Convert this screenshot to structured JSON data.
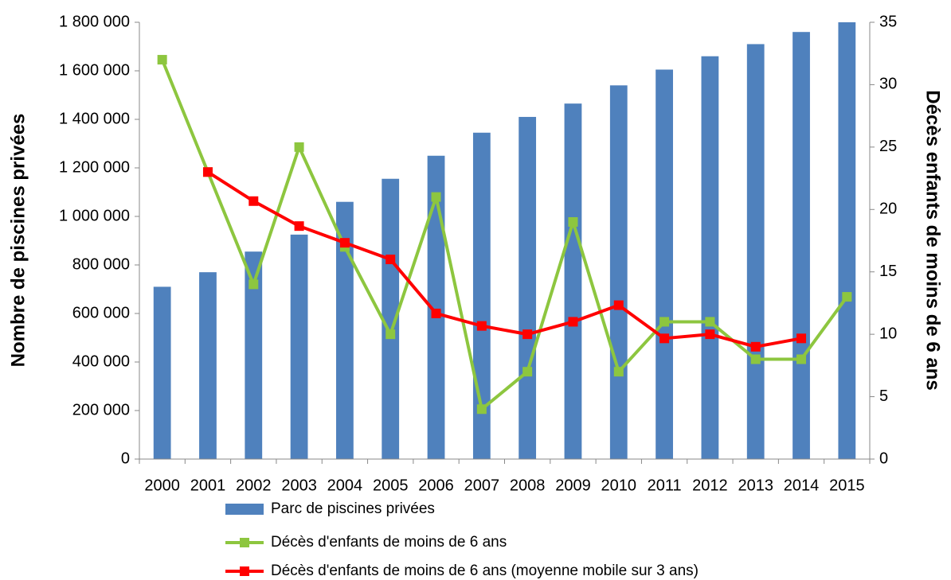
{
  "chart_data": {
    "type": "bar-line",
    "categories": [
      "2000",
      "2001",
      "2002",
      "2003",
      "2004",
      "2005",
      "2006",
      "2007",
      "2008",
      "2009",
      "2010",
      "2011",
      "2012",
      "2013",
      "2014",
      "2015"
    ],
    "series": [
      {
        "name": "Parc de piscines privées",
        "type": "bar",
        "color": "#4f81bd",
        "values": [
          710000,
          770000,
          855000,
          925000,
          1060000,
          1155000,
          1250000,
          1345000,
          1410000,
          1465000,
          1540000,
          1605000,
          1660000,
          1710000,
          1760000,
          1800000
        ]
      },
      {
        "name": "Décès d'enfants de moins de 6 ans",
        "type": "line",
        "axis": "y2",
        "color": "#8dc63f",
        "values": [
          32,
          23,
          14,
          25,
          17,
          10,
          21,
          4,
          7,
          19,
          7,
          11,
          11,
          8,
          8,
          13
        ]
      },
      {
        "name": "Décès d'enfants de moins de 6 ans (moyenne mobile sur 3 ans)",
        "type": "line",
        "axis": "y2",
        "color": "#ff0000",
        "values": [
          null,
          23,
          20.67,
          18.67,
          17.33,
          16,
          11.67,
          10.67,
          10,
          11,
          12.33,
          9.67,
          10,
          9,
          9.67,
          null
        ]
      }
    ],
    "y_label": "Nombre de piscines privées",
    "y2_label": "Décès enfants de moins de 6 ans",
    "ylim": [
      0,
      1800000
    ],
    "yticks": [
      0,
      {
        "value": 200000,
        "label": "200 000"
      },
      {
        "value": 400000,
        "label": "400 000"
      },
      {
        "value": 600000,
        "label": "600 000"
      },
      {
        "value": 800000,
        "label": "800 000"
      },
      {
        "value": 1000000,
        "label": "1 000 000"
      },
      {
        "value": 1200000,
        "label": "1 200 000"
      },
      {
        "value": 1400000,
        "label": "1 400 000"
      },
      {
        "value": 1600000,
        "label": "1 600 000"
      },
      {
        "value": 1800000,
        "label": "1 800 000"
      }
    ],
    "y2lim": [
      0,
      35
    ],
    "y2ticks": [
      0,
      5,
      10,
      15,
      20,
      25,
      30,
      35
    ],
    "legend": "bottom",
    "grid": false
  }
}
